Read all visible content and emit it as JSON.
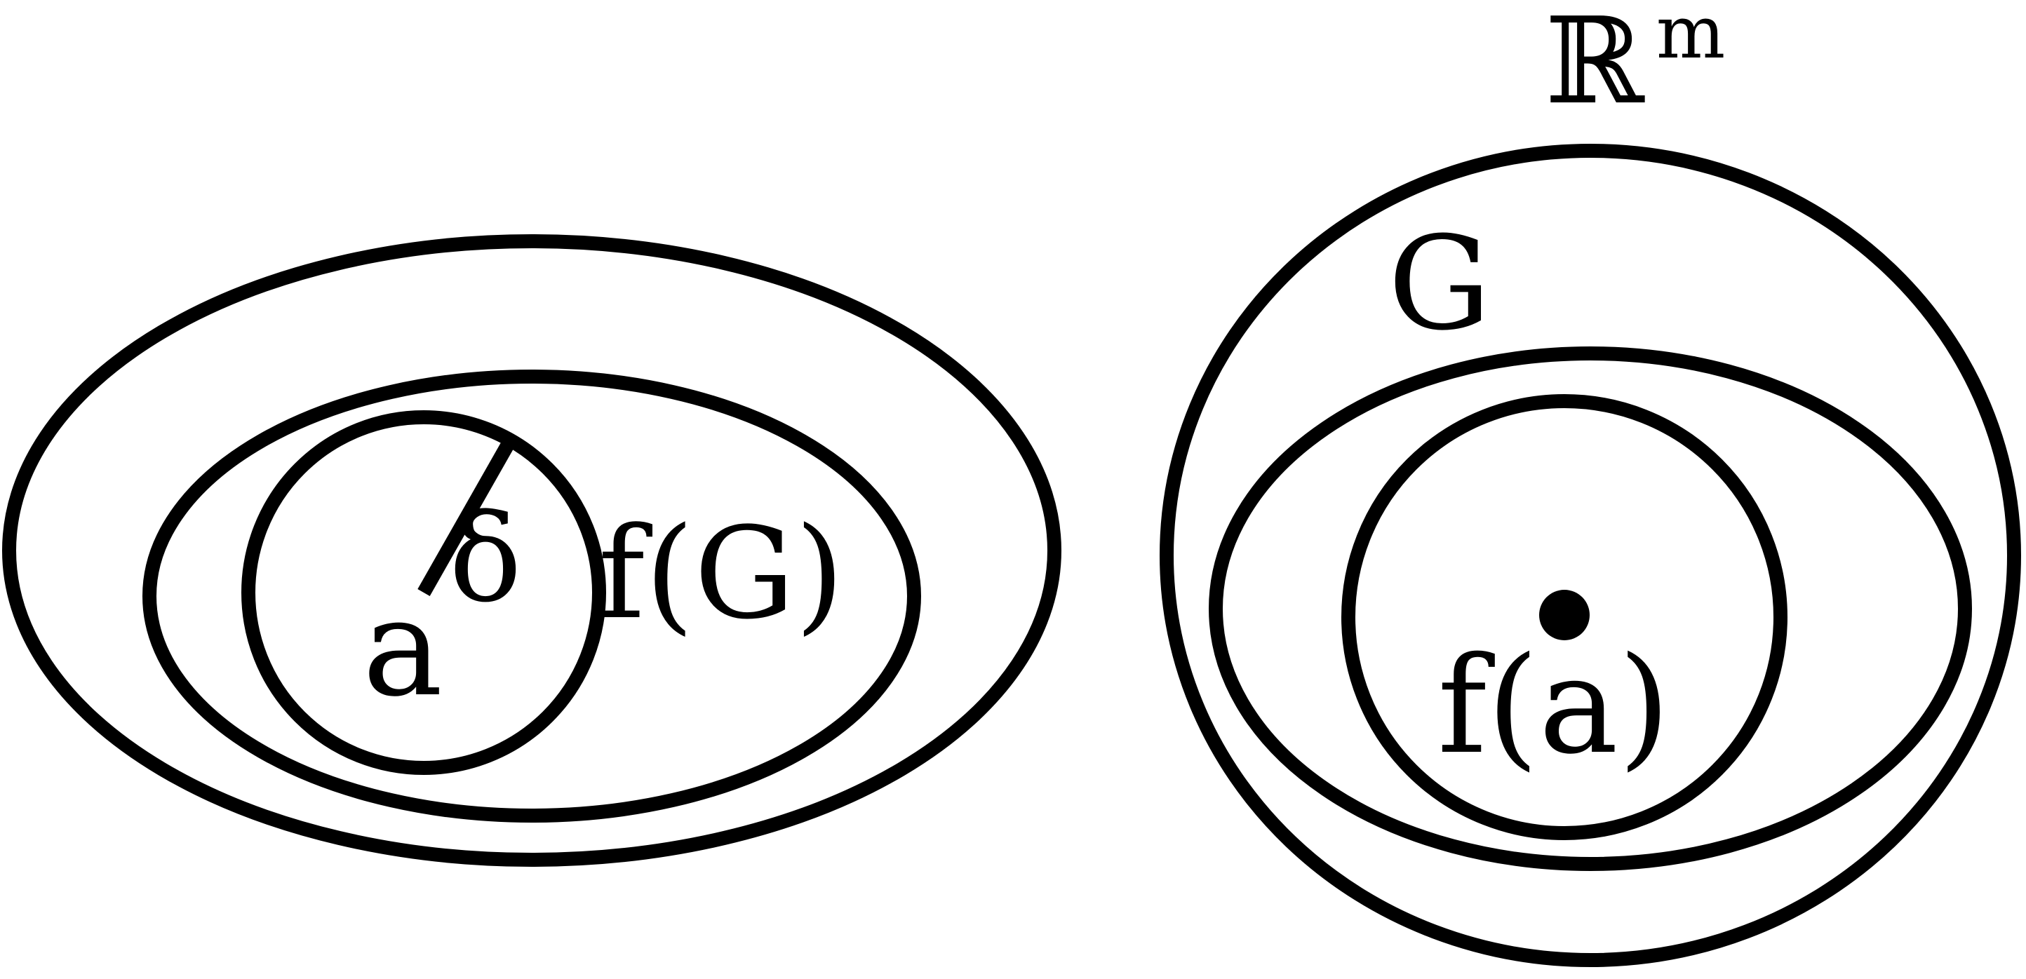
{
  "diagram": {
    "left": {
      "inner_label": "f(G)",
      "point_label": "a",
      "radius_label": "δ"
    },
    "right": {
      "space_label": "ℝ",
      "space_superscript": "m",
      "set_label": "G",
      "point_label": "f(a)"
    },
    "colors": {
      "stroke": "#000000",
      "background": "#ffffff"
    }
  }
}
